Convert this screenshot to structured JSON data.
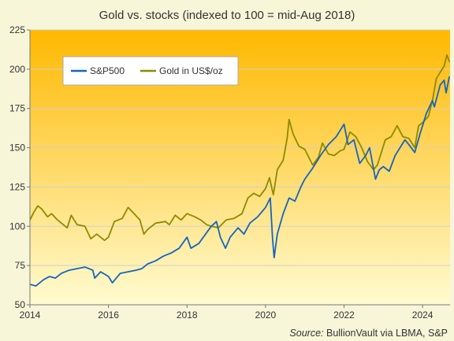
{
  "chart_data": {
    "type": "line",
    "title": "Gold vs. stocks (indexed to 100 = mid-Aug 2018)",
    "xlabel": "",
    "ylabel": "",
    "xlim": [
      2014,
      2024.7
    ],
    "ylim": [
      50,
      225
    ],
    "x_ticks": [
      "2014",
      "2016",
      "2018",
      "2020",
      "2022",
      "2024"
    ],
    "x_tick_values": [
      2014,
      2016,
      2018,
      2020,
      2022,
      2024
    ],
    "y_ticks": [
      "50",
      "75",
      "100",
      "125",
      "150",
      "175",
      "200",
      "225"
    ],
    "y_tick_values": [
      50,
      75,
      100,
      125,
      150,
      175,
      200,
      225
    ],
    "grid": "horizontal",
    "legend_placement": "top-left",
    "background_gradient": [
      "#ffb800",
      "#fffbd0"
    ],
    "series": [
      {
        "name": "S&P500",
        "color": "#1565c0",
        "points": [
          [
            2014.0,
            63
          ],
          [
            2014.15,
            62
          ],
          [
            2014.35,
            66
          ],
          [
            2014.5,
            68
          ],
          [
            2014.65,
            67
          ],
          [
            2014.8,
            70
          ],
          [
            2015.0,
            72
          ],
          [
            2015.2,
            73
          ],
          [
            2015.4,
            74
          ],
          [
            2015.6,
            72
          ],
          [
            2015.65,
            67
          ],
          [
            2015.8,
            71
          ],
          [
            2016.0,
            68
          ],
          [
            2016.1,
            64
          ],
          [
            2016.3,
            70
          ],
          [
            2016.5,
            71
          ],
          [
            2016.7,
            72
          ],
          [
            2016.85,
            73
          ],
          [
            2017.0,
            76
          ],
          [
            2017.2,
            78
          ],
          [
            2017.4,
            81
          ],
          [
            2017.6,
            83
          ],
          [
            2017.8,
            86
          ],
          [
            2018.0,
            93
          ],
          [
            2018.1,
            86
          ],
          [
            2018.3,
            89
          ],
          [
            2018.5,
            96
          ],
          [
            2018.62,
            100
          ],
          [
            2018.75,
            103
          ],
          [
            2018.85,
            93
          ],
          [
            2018.98,
            86
          ],
          [
            2019.1,
            93
          ],
          [
            2019.3,
            99
          ],
          [
            2019.45,
            95
          ],
          [
            2019.6,
            102
          ],
          [
            2019.8,
            106
          ],
          [
            2020.0,
            112
          ],
          [
            2020.12,
            118
          ],
          [
            2020.18,
            92
          ],
          [
            2020.22,
            80
          ],
          [
            2020.3,
            95
          ],
          [
            2020.45,
            108
          ],
          [
            2020.6,
            118
          ],
          [
            2020.75,
            116
          ],
          [
            2020.9,
            125
          ],
          [
            2021.0,
            130
          ],
          [
            2021.2,
            137
          ],
          [
            2021.4,
            145
          ],
          [
            2021.6,
            152
          ],
          [
            2021.8,
            157
          ],
          [
            2022.0,
            165
          ],
          [
            2022.1,
            152
          ],
          [
            2022.25,
            155
          ],
          [
            2022.4,
            140
          ],
          [
            2022.55,
            145
          ],
          [
            2022.65,
            150
          ],
          [
            2022.8,
            130
          ],
          [
            2022.9,
            136
          ],
          [
            2023.0,
            138
          ],
          [
            2023.15,
            135
          ],
          [
            2023.3,
            145
          ],
          [
            2023.55,
            155
          ],
          [
            2023.65,
            152
          ],
          [
            2023.8,
            147
          ],
          [
            2023.95,
            160
          ],
          [
            2024.1,
            172
          ],
          [
            2024.25,
            180
          ],
          [
            2024.3,
            176
          ],
          [
            2024.45,
            190
          ],
          [
            2024.55,
            193
          ],
          [
            2024.6,
            185
          ],
          [
            2024.68,
            195
          ]
        ]
      },
      {
        "name": "Gold in US$/oz",
        "color": "#8e8a00",
        "points": [
          [
            2014.0,
            104
          ],
          [
            2014.1,
            109
          ],
          [
            2014.2,
            113
          ],
          [
            2014.3,
            111
          ],
          [
            2014.45,
            106
          ],
          [
            2014.55,
            108
          ],
          [
            2014.7,
            104
          ],
          [
            2014.85,
            101
          ],
          [
            2014.95,
            99
          ],
          [
            2015.05,
            107
          ],
          [
            2015.2,
            101
          ],
          [
            2015.4,
            100
          ],
          [
            2015.55,
            92
          ],
          [
            2015.7,
            95
          ],
          [
            2015.9,
            91
          ],
          [
            2016.0,
            93
          ],
          [
            2016.15,
            103
          ],
          [
            2016.35,
            105
          ],
          [
            2016.5,
            112
          ],
          [
            2016.65,
            108
          ],
          [
            2016.8,
            104
          ],
          [
            2016.9,
            95
          ],
          [
            2017.0,
            98
          ],
          [
            2017.2,
            102
          ],
          [
            2017.45,
            103
          ],
          [
            2017.55,
            101
          ],
          [
            2017.7,
            107
          ],
          [
            2017.85,
            104
          ],
          [
            2018.0,
            108
          ],
          [
            2018.2,
            106
          ],
          [
            2018.35,
            104
          ],
          [
            2018.5,
            101
          ],
          [
            2018.62,
            100
          ],
          [
            2018.8,
            99
          ],
          [
            2019.0,
            104
          ],
          [
            2019.2,
            105
          ],
          [
            2019.4,
            108
          ],
          [
            2019.55,
            118
          ],
          [
            2019.7,
            121
          ],
          [
            2019.85,
            119
          ],
          [
            2020.0,
            124
          ],
          [
            2020.1,
            131
          ],
          [
            2020.2,
            120
          ],
          [
            2020.3,
            136
          ],
          [
            2020.45,
            142
          ],
          [
            2020.55,
            156
          ],
          [
            2020.6,
            168
          ],
          [
            2020.7,
            159
          ],
          [
            2020.85,
            151
          ],
          [
            2021.0,
            149
          ],
          [
            2021.2,
            139
          ],
          [
            2021.35,
            144
          ],
          [
            2021.45,
            153
          ],
          [
            2021.6,
            146
          ],
          [
            2021.75,
            145
          ],
          [
            2021.9,
            148
          ],
          [
            2022.0,
            149
          ],
          [
            2022.15,
            160
          ],
          [
            2022.3,
            157
          ],
          [
            2022.45,
            150
          ],
          [
            2022.6,
            141
          ],
          [
            2022.75,
            136
          ],
          [
            2022.85,
            139
          ],
          [
            2022.95,
            147
          ],
          [
            2023.05,
            155
          ],
          [
            2023.2,
            157
          ],
          [
            2023.35,
            164
          ],
          [
            2023.5,
            157
          ],
          [
            2023.65,
            156
          ],
          [
            2023.8,
            150
          ],
          [
            2023.9,
            164
          ],
          [
            2024.0,
            166
          ],
          [
            2024.15,
            170
          ],
          [
            2024.25,
            180
          ],
          [
            2024.35,
            194
          ],
          [
            2024.45,
            198
          ],
          [
            2024.55,
            202
          ],
          [
            2024.62,
            209
          ],
          [
            2024.68,
            205
          ]
        ]
      }
    ]
  },
  "source": {
    "prefix": "Source:",
    "text": " BullionVault via LBMA, S&P"
  }
}
